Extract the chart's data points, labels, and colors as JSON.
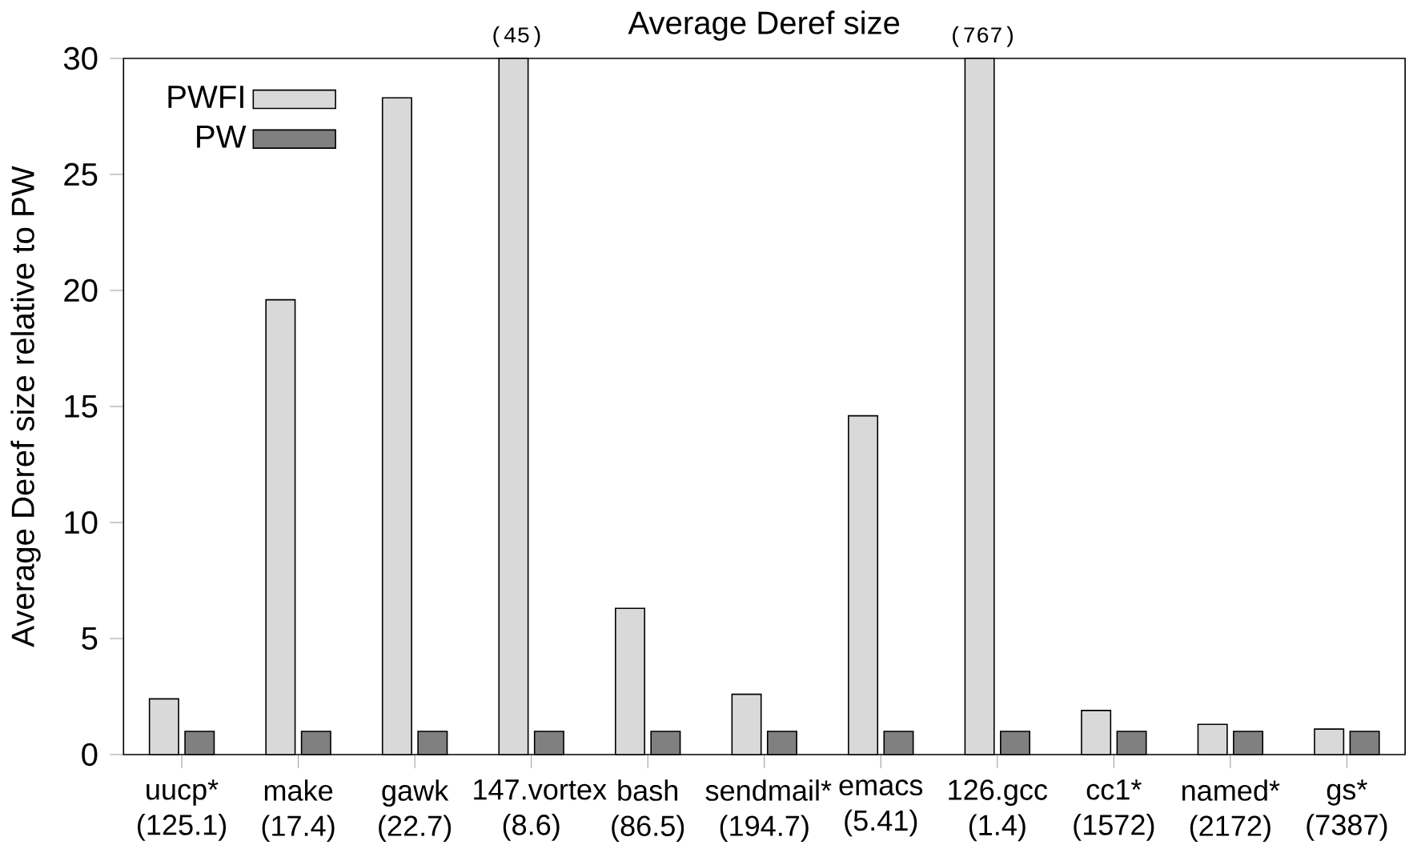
{
  "chart_data": {
    "type": "bar",
    "title": "Average Deref size",
    "ylabel": "Average Deref size relative to PW",
    "categories": [
      "uucp* (125.1)",
      "make (17.4)",
      "gawk (22.7)",
      "147.vortex (8.6)",
      "bash (86.5)",
      "sendmail* (194.7)",
      "emacs (5.41)",
      "126.gcc (1.4)",
      "cc1* (1572)",
      "named* (2172)",
      "gs* (7387)"
    ],
    "series": [
      {
        "name": "PWFI",
        "color": "#d9d9d9",
        "values": [
          2.4,
          19.6,
          28.3,
          30,
          6.3,
          2.6,
          14.6,
          30,
          1.9,
          1.3,
          1.1
        ]
      },
      {
        "name": "PW",
        "color": "#808080",
        "values": [
          1,
          1,
          1,
          1,
          1,
          1,
          1,
          1,
          1,
          1,
          1
        ]
      }
    ],
    "annotations": [
      "(45)",
      "(767)"
    ],
    "ylim": [
      0,
      30
    ],
    "yticks": [
      0,
      5,
      10,
      15,
      20,
      25,
      30
    ],
    "legend": "top left",
    "grid": false
  }
}
